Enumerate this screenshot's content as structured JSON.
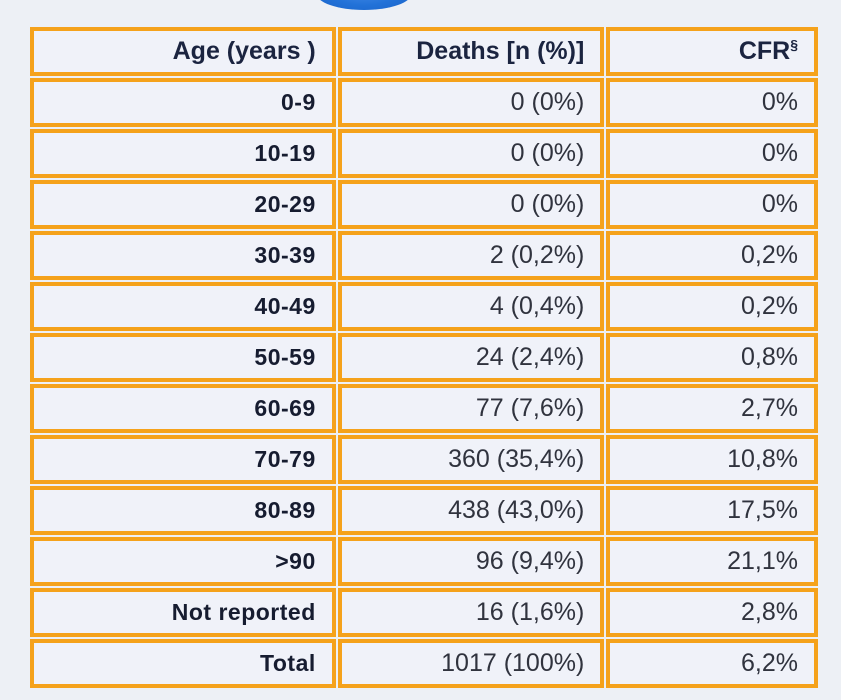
{
  "colors": {
    "border_orange": "#f5a21b",
    "cell_background": "#f0f2f9",
    "page_background": "#edf0f5",
    "header_text": "#1b2440",
    "value_text": "#30333e",
    "decor_blue": "#2272d8"
  },
  "decor": {
    "blue_shape": "partially-cropped-blue-ellipse"
  },
  "table": {
    "columns": {
      "age_label": "Age (years )",
      "deaths_label": "Deaths [n (%)]",
      "cfr_label": "CFR",
      "cfr_superscript": "§"
    },
    "rows": [
      {
        "age": "0-9",
        "deaths": "0 (0%)",
        "cfr": "0%"
      },
      {
        "age": "10-19",
        "deaths": "0 (0%)",
        "cfr": "0%"
      },
      {
        "age": "20-29",
        "deaths": "0 (0%)",
        "cfr": "0%"
      },
      {
        "age": "30-39",
        "deaths": "2 (0,2%)",
        "cfr": "0,2%"
      },
      {
        "age": "40-49",
        "deaths": "4 (0,4%)",
        "cfr": "0,2%"
      },
      {
        "age": "50-59",
        "deaths": "24 (2,4%)",
        "cfr": "0,8%"
      },
      {
        "age": "60-69",
        "deaths": "77 (7,6%)",
        "cfr": "2,7%"
      },
      {
        "age": "70-79",
        "deaths": "360 (35,4%)",
        "cfr": "10,8%"
      },
      {
        "age": "80-89",
        "deaths": "438 (43,0%)",
        "cfr": "17,5%"
      },
      {
        "age": ">90",
        "deaths": "96 (9,4%)",
        "cfr": "21,1%"
      },
      {
        "age": "Not reported",
        "deaths": "16 (1,6%)",
        "cfr": "2,8%"
      },
      {
        "age": "Total",
        "deaths": "1017 (100%)",
        "cfr": "6,2%"
      }
    ]
  }
}
